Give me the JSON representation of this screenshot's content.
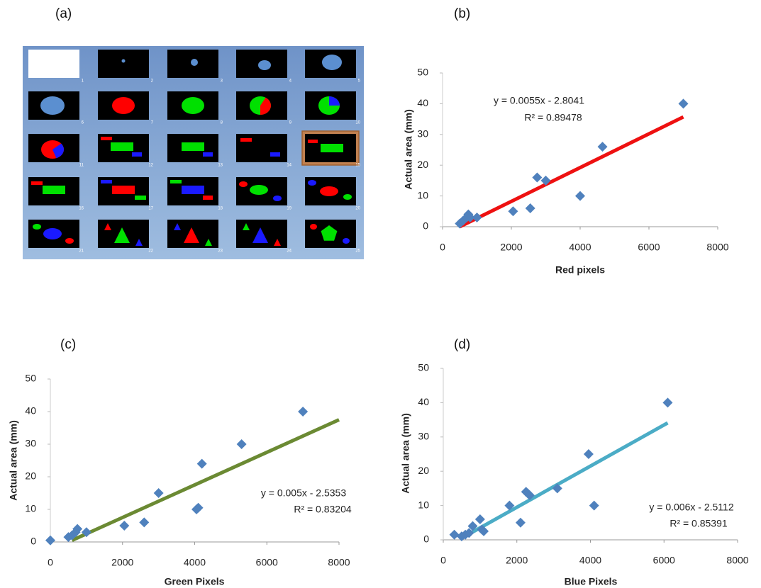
{
  "image_grid": {
    "label": "(a)",
    "thumbnails": [
      "1",
      "2",
      "3",
      "4",
      "5",
      "6",
      "7",
      "8",
      "9",
      "10",
      "11",
      "12",
      "13",
      "14",
      "15",
      "16",
      "17",
      "18",
      "19",
      "20",
      "21",
      "22",
      "23",
      "24",
      "25"
    ]
  },
  "chart_data": [
    {
      "type": "scatter",
      "label": "(b)",
      "x_label": "Red pixels",
      "y_label": "Actual area (mm)",
      "color": "#4f81bd",
      "x": [
        500,
        600,
        700,
        750,
        800,
        1000,
        2050,
        2550,
        2750,
        3000,
        4000,
        4650,
        7000
      ],
      "values": [
        1,
        2,
        3,
        4,
        3,
        3,
        5,
        6,
        16,
        15,
        10,
        26,
        40
      ],
      "xlim": [
        0,
        8000
      ],
      "ylim": [
        0,
        50
      ],
      "xticks": [
        0,
        2000,
        4000,
        6000,
        8000
      ],
      "yticks": [
        0,
        10,
        20,
        30,
        40,
        50
      ],
      "trendline": {
        "color": "#ee1111",
        "x": [
          500,
          7000
        ],
        "values": [
          0,
          35.7
        ],
        "equation": "y = 0.0055x - 2.8041",
        "r_squared": "R² = 0.89478"
      }
    },
    {
      "type": "scatter",
      "label": "(c)",
      "x_label": "Green Pixels",
      "y_label": "Actual area (mm)",
      "color": "#4f81bd",
      "x": [
        0,
        500,
        600,
        700,
        750,
        1000,
        2050,
        2600,
        3000,
        4050,
        4100,
        4200,
        5300,
        7000
      ],
      "values": [
        0.5,
        1.5,
        2,
        3,
        4,
        3,
        5,
        6,
        15,
        10,
        10.5,
        24,
        30,
        40
      ],
      "xlim": [
        0,
        8000
      ],
      "ylim": [
        0,
        50
      ],
      "xticks": [
        0,
        2000,
        4000,
        6000,
        8000
      ],
      "yticks": [
        0,
        10,
        20,
        30,
        40,
        50
      ],
      "trendline": {
        "color": "#6b8a33",
        "x": [
          600,
          8000
        ],
        "values": [
          0.5,
          37.5
        ],
        "equation": "y = 0.005x - 2.5353",
        "r_squared": "R² = 0.83204"
      }
    },
    {
      "type": "scatter",
      "label": "(d)",
      "x_label": "Blue Pixels",
      "y_label": "Actual area (mm)",
      "color": "#4f81bd",
      "x": [
        300,
        500,
        600,
        700,
        800,
        1000,
        1050,
        1100,
        1800,
        2100,
        2250,
        2300,
        2350,
        3100,
        3950,
        4100,
        6100
      ],
      "values": [
        1.5,
        1,
        1.5,
        2,
        4,
        6,
        3,
        2.5,
        10,
        5,
        14,
        13.5,
        13,
        15,
        25,
        10,
        40
      ],
      "xlim": [
        0,
        8000
      ],
      "ylim": [
        0,
        50
      ],
      "xticks": [
        0,
        2000,
        4000,
        6000,
        8000
      ],
      "yticks": [
        0,
        10,
        20,
        30,
        40,
        50
      ],
      "trendline": {
        "color": "#4bacc6",
        "x": [
          700,
          6100
        ],
        "values": [
          1.7,
          34.1
        ],
        "equation": "y = 0.006x - 2.5112",
        "r_squared": "R² = 0.85391"
      }
    }
  ]
}
